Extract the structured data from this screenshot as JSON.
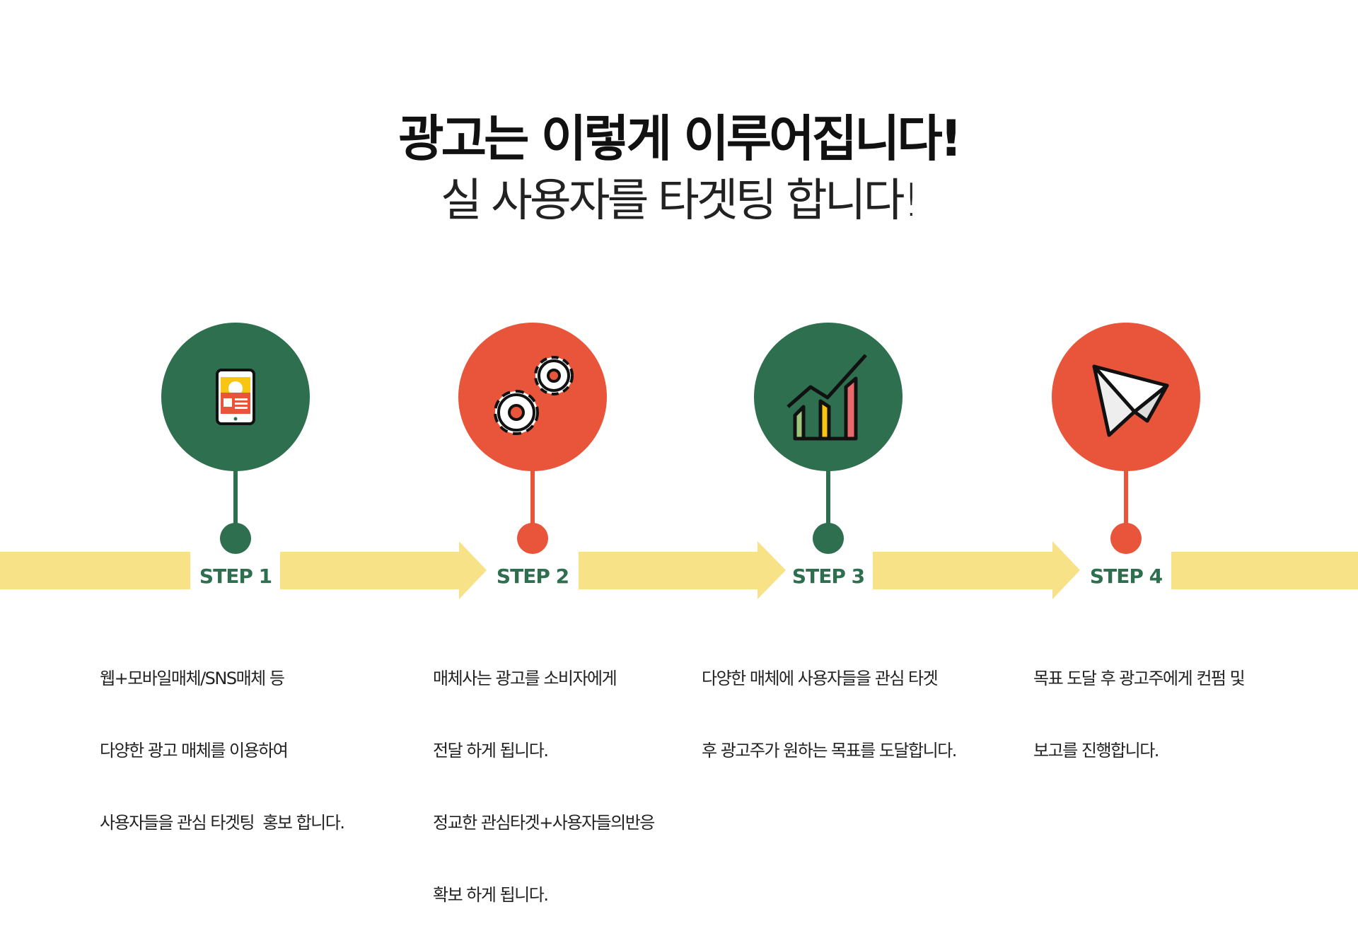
{
  "title": "광고는 이렇게 이루어집니다!",
  "subtitle": "실 사용자를 타겟팅 합니다!",
  "colors": {
    "green": "#2e6f4f",
    "red": "#e9553b",
    "yellow": "#f7e288"
  },
  "steps": [
    {
      "label": "STEP 1",
      "icon": "mobile-phone-icon",
      "color": "green",
      "lines": [
        "웹+모바일매체/SNS매체 등",
        "다양한 광고 매체를 이용하여",
        "사용자들을 관심 타겟팅  홍보 합니다."
      ]
    },
    {
      "label": "STEP 2",
      "icon": "gears-icon",
      "color": "red",
      "lines": [
        "매체사는 광고를 소비자에게",
        "전달 하게 됩니다.",
        "정교한 관심타겟+사용자들의반응",
        "확보 하게 됩니다."
      ]
    },
    {
      "label": "STEP 3",
      "icon": "growth-chart-icon",
      "color": "green",
      "lines": [
        "다양한 매체에 사용자들을 관심 타겟",
        "후 광고주가 원하는 목표를 도달합니다."
      ]
    },
    {
      "label": "STEP 4",
      "icon": "paper-plane-icon",
      "color": "red",
      "lines": [
        "목표 도달 후 광고주에게 컨펌 및",
        "보고를 진행합니다."
      ]
    }
  ]
}
